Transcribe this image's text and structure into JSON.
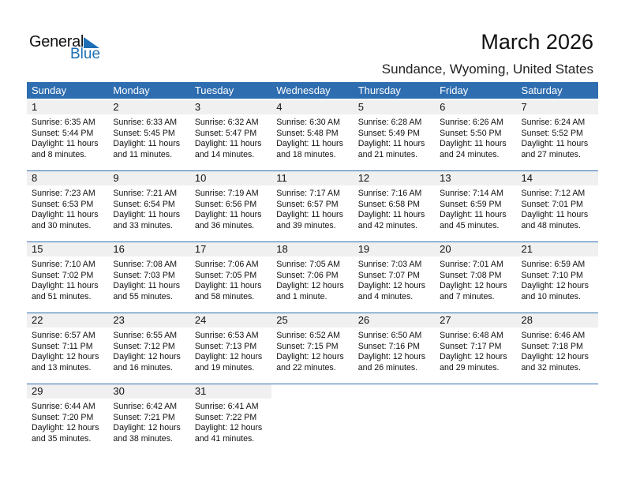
{
  "logo": {
    "general": "General",
    "blue": "Blue"
  },
  "title": "March 2026",
  "location": "Sundance, Wyoming, United States",
  "colors": {
    "header": "#2e6db0",
    "brand": "#1c6fb5",
    "day_band": "#f0f0f0"
  },
  "weekdays": [
    "Sunday",
    "Monday",
    "Tuesday",
    "Wednesday",
    "Thursday",
    "Friday",
    "Saturday"
  ],
  "weeks": [
    [
      {
        "day": "1",
        "sunrise": "Sunrise: 6:35 AM",
        "sunset": "Sunset: 5:44 PM",
        "daylight": "Daylight: 11 hours",
        "minutes": "and 8 minutes."
      },
      {
        "day": "2",
        "sunrise": "Sunrise: 6:33 AM",
        "sunset": "Sunset: 5:45 PM",
        "daylight": "Daylight: 11 hours",
        "minutes": "and 11 minutes."
      },
      {
        "day": "3",
        "sunrise": "Sunrise: 6:32 AM",
        "sunset": "Sunset: 5:47 PM",
        "daylight": "Daylight: 11 hours",
        "minutes": "and 14 minutes."
      },
      {
        "day": "4",
        "sunrise": "Sunrise: 6:30 AM",
        "sunset": "Sunset: 5:48 PM",
        "daylight": "Daylight: 11 hours",
        "minutes": "and 18 minutes."
      },
      {
        "day": "5",
        "sunrise": "Sunrise: 6:28 AM",
        "sunset": "Sunset: 5:49 PM",
        "daylight": "Daylight: 11 hours",
        "minutes": "and 21 minutes."
      },
      {
        "day": "6",
        "sunrise": "Sunrise: 6:26 AM",
        "sunset": "Sunset: 5:50 PM",
        "daylight": "Daylight: 11 hours",
        "minutes": "and 24 minutes."
      },
      {
        "day": "7",
        "sunrise": "Sunrise: 6:24 AM",
        "sunset": "Sunset: 5:52 PM",
        "daylight": "Daylight: 11 hours",
        "minutes": "and 27 minutes."
      }
    ],
    [
      {
        "day": "8",
        "sunrise": "Sunrise: 7:23 AM",
        "sunset": "Sunset: 6:53 PM",
        "daylight": "Daylight: 11 hours",
        "minutes": "and 30 minutes."
      },
      {
        "day": "9",
        "sunrise": "Sunrise: 7:21 AM",
        "sunset": "Sunset: 6:54 PM",
        "daylight": "Daylight: 11 hours",
        "minutes": "and 33 minutes."
      },
      {
        "day": "10",
        "sunrise": "Sunrise: 7:19 AM",
        "sunset": "Sunset: 6:56 PM",
        "daylight": "Daylight: 11 hours",
        "minutes": "and 36 minutes."
      },
      {
        "day": "11",
        "sunrise": "Sunrise: 7:17 AM",
        "sunset": "Sunset: 6:57 PM",
        "daylight": "Daylight: 11 hours",
        "minutes": "and 39 minutes."
      },
      {
        "day": "12",
        "sunrise": "Sunrise: 7:16 AM",
        "sunset": "Sunset: 6:58 PM",
        "daylight": "Daylight: 11 hours",
        "minutes": "and 42 minutes."
      },
      {
        "day": "13",
        "sunrise": "Sunrise: 7:14 AM",
        "sunset": "Sunset: 6:59 PM",
        "daylight": "Daylight: 11 hours",
        "minutes": "and 45 minutes."
      },
      {
        "day": "14",
        "sunrise": "Sunrise: 7:12 AM",
        "sunset": "Sunset: 7:01 PM",
        "daylight": "Daylight: 11 hours",
        "minutes": "and 48 minutes."
      }
    ],
    [
      {
        "day": "15",
        "sunrise": "Sunrise: 7:10 AM",
        "sunset": "Sunset: 7:02 PM",
        "daylight": "Daylight: 11 hours",
        "minutes": "and 51 minutes."
      },
      {
        "day": "16",
        "sunrise": "Sunrise: 7:08 AM",
        "sunset": "Sunset: 7:03 PM",
        "daylight": "Daylight: 11 hours",
        "minutes": "and 55 minutes."
      },
      {
        "day": "17",
        "sunrise": "Sunrise: 7:06 AM",
        "sunset": "Sunset: 7:05 PM",
        "daylight": "Daylight: 11 hours",
        "minutes": "and 58 minutes."
      },
      {
        "day": "18",
        "sunrise": "Sunrise: 7:05 AM",
        "sunset": "Sunset: 7:06 PM",
        "daylight": "Daylight: 12 hours",
        "minutes": "and 1 minute."
      },
      {
        "day": "19",
        "sunrise": "Sunrise: 7:03 AM",
        "sunset": "Sunset: 7:07 PM",
        "daylight": "Daylight: 12 hours",
        "minutes": "and 4 minutes."
      },
      {
        "day": "20",
        "sunrise": "Sunrise: 7:01 AM",
        "sunset": "Sunset: 7:08 PM",
        "daylight": "Daylight: 12 hours",
        "minutes": "and 7 minutes."
      },
      {
        "day": "21",
        "sunrise": "Sunrise: 6:59 AM",
        "sunset": "Sunset: 7:10 PM",
        "daylight": "Daylight: 12 hours",
        "minutes": "and 10 minutes."
      }
    ],
    [
      {
        "day": "22",
        "sunrise": "Sunrise: 6:57 AM",
        "sunset": "Sunset: 7:11 PM",
        "daylight": "Daylight: 12 hours",
        "minutes": "and 13 minutes."
      },
      {
        "day": "23",
        "sunrise": "Sunrise: 6:55 AM",
        "sunset": "Sunset: 7:12 PM",
        "daylight": "Daylight: 12 hours",
        "minutes": "and 16 minutes."
      },
      {
        "day": "24",
        "sunrise": "Sunrise: 6:53 AM",
        "sunset": "Sunset: 7:13 PM",
        "daylight": "Daylight: 12 hours",
        "minutes": "and 19 minutes."
      },
      {
        "day": "25",
        "sunrise": "Sunrise: 6:52 AM",
        "sunset": "Sunset: 7:15 PM",
        "daylight": "Daylight: 12 hours",
        "minutes": "and 22 minutes."
      },
      {
        "day": "26",
        "sunrise": "Sunrise: 6:50 AM",
        "sunset": "Sunset: 7:16 PM",
        "daylight": "Daylight: 12 hours",
        "minutes": "and 26 minutes."
      },
      {
        "day": "27",
        "sunrise": "Sunrise: 6:48 AM",
        "sunset": "Sunset: 7:17 PM",
        "daylight": "Daylight: 12 hours",
        "minutes": "and 29 minutes."
      },
      {
        "day": "28",
        "sunrise": "Sunrise: 6:46 AM",
        "sunset": "Sunset: 7:18 PM",
        "daylight": "Daylight: 12 hours",
        "minutes": "and 32 minutes."
      }
    ],
    [
      {
        "day": "29",
        "sunrise": "Sunrise: 6:44 AM",
        "sunset": "Sunset: 7:20 PM",
        "daylight": "Daylight: 12 hours",
        "minutes": "and 35 minutes."
      },
      {
        "day": "30",
        "sunrise": "Sunrise: 6:42 AM",
        "sunset": "Sunset: 7:21 PM",
        "daylight": "Daylight: 12 hours",
        "minutes": "and 38 minutes."
      },
      {
        "day": "31",
        "sunrise": "Sunrise: 6:41 AM",
        "sunset": "Sunset: 7:22 PM",
        "daylight": "Daylight: 12 hours",
        "minutes": "and 41 minutes."
      },
      null,
      null,
      null,
      null
    ]
  ]
}
